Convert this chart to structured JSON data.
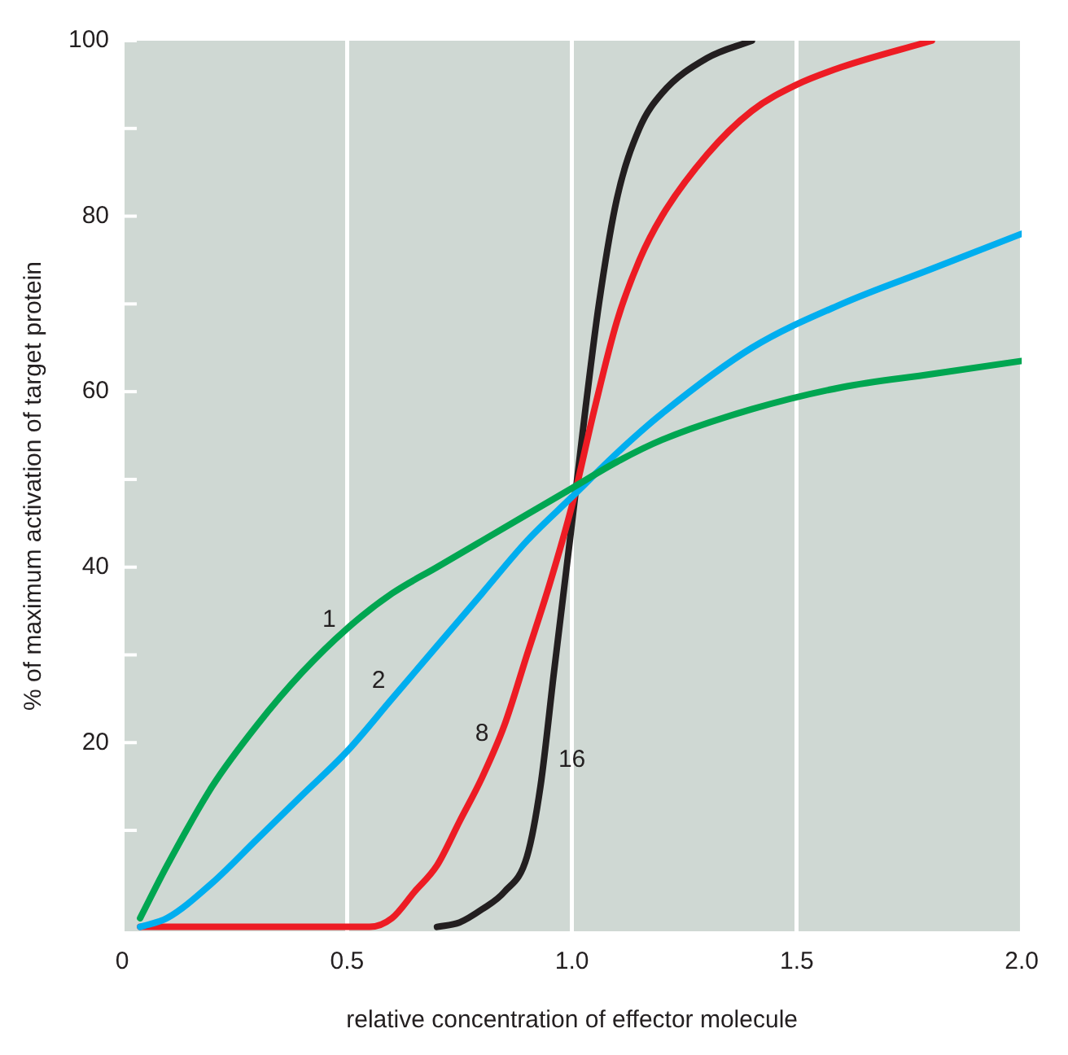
{
  "chart_data": {
    "type": "line",
    "xlabel": "relative concentration of effector molecule",
    "ylabel": "% of maximum activation of target protein",
    "xlim": [
      0,
      2
    ],
    "xticks": [
      0,
      0.5,
      {
        "value": 1,
        "label": "1.0"
      },
      1.5,
      {
        "value": 2,
        "label": "2.0"
      }
    ],
    "ylim": [
      -1.5,
      100
    ],
    "yticks": [
      {
        "value": 10,
        "label": null
      },
      20,
      {
        "value": 30,
        "label": null
      },
      40,
      {
        "value": 50,
        "label": null
      },
      60,
      {
        "value": 70,
        "label": null
      },
      80,
      {
        "value": 90,
        "label": null
      },
      100
    ],
    "grid": "x",
    "marker": "none",
    "line_style": "solid",
    "series": [
      {
        "name": "1",
        "color": "#00a651",
        "x": [
          0.04,
          0.1,
          0.2,
          0.3,
          0.4,
          0.5,
          0.6,
          0.7,
          0.8,
          0.9,
          1.0,
          1.1,
          1.2,
          1.4,
          1.6,
          1.8,
          2.0
        ],
        "values": [
          0,
          6,
          15,
          22,
          28,
          33,
          37,
          40,
          43,
          46,
          49,
          52,
          54.5,
          58,
          60.5,
          62,
          63.5
        ]
      },
      {
        "name": "2",
        "color": "#00aeef",
        "x": [
          0.04,
          0.1,
          0.2,
          0.3,
          0.4,
          0.5,
          0.6,
          0.7,
          0.8,
          0.9,
          1.0,
          1.1,
          1.2,
          1.4,
          1.6,
          1.8,
          2.0
        ],
        "values": [
          -1,
          0,
          4,
          9,
          14,
          19,
          25,
          31,
          37,
          43,
          48,
          53,
          57.5,
          65,
          70,
          74,
          78
        ]
      },
      {
        "name": "8",
        "color": "#ed1c24",
        "x": [
          0.04,
          0.3,
          0.55,
          0.6,
          0.65,
          0.7,
          0.75,
          0.8,
          0.85,
          0.9,
          0.95,
          1.0,
          1.05,
          1.1,
          1.15,
          1.2,
          1.3,
          1.4,
          1.5,
          1.6,
          1.8
        ],
        "values": [
          -1,
          -1,
          -1,
          0,
          3,
          6,
          11,
          16,
          22,
          30,
          38,
          47,
          58,
          68,
          75,
          80,
          87,
          92,
          95,
          97,
          100
        ]
      },
      {
        "name": "16",
        "color": "#231f20",
        "x": [
          0.7,
          0.75,
          0.8,
          0.85,
          0.9,
          0.93,
          0.96,
          1.0,
          1.03,
          1.06,
          1.1,
          1.15,
          1.2,
          1.3,
          1.4
        ],
        "values": [
          -1,
          -0.5,
          1,
          3,
          7,
          15,
          28,
          45,
          58,
          70,
          82,
          90,
          94,
          98,
          100
        ]
      }
    ]
  }
}
